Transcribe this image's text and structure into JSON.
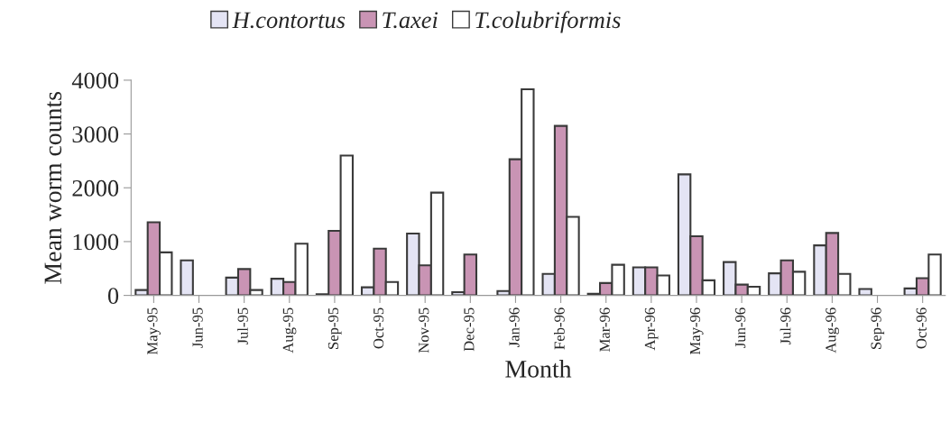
{
  "chart_data": {
    "type": "bar",
    "xlabel": "Month",
    "ylabel": "Mean worm counts",
    "categories": [
      "May-95",
      "Jun-95",
      "Jul-95",
      "Aug-95",
      "Sep-95",
      "Oct-95",
      "Nov-95",
      "Dec-95",
      "Jan-96",
      "Feb-96",
      "Mar-96",
      "Apr-96",
      "May-96",
      "Jun-96",
      "Jul-96",
      "Aug-96",
      "Sep-96",
      "Oct-96"
    ],
    "series": [
      {
        "name": "H.contortus",
        "color": "#e4e4f4",
        "values": [
          100,
          650,
          330,
          310,
          20,
          150,
          1150,
          60,
          80,
          400,
          30,
          520,
          2250,
          620,
          410,
          930,
          120,
          130
        ]
      },
      {
        "name": "T.axei",
        "color": "#c994b4",
        "values": [
          1360,
          null,
          490,
          250,
          1200,
          870,
          560,
          760,
          2530,
          3150,
          230,
          520,
          1100,
          200,
          650,
          1160,
          null,
          320
        ]
      },
      {
        "name": "T.colubriformis",
        "color": "#ffffff",
        "values": [
          800,
          null,
          100,
          960,
          2600,
          250,
          1910,
          null,
          3830,
          1460,
          570,
          370,
          280,
          160,
          440,
          400,
          null,
          760
        ]
      }
    ],
    "ylim": [
      0,
      4000
    ],
    "yticks": [
      0,
      1000,
      2000,
      3000,
      4000
    ],
    "grid": false,
    "legend": "top"
  }
}
